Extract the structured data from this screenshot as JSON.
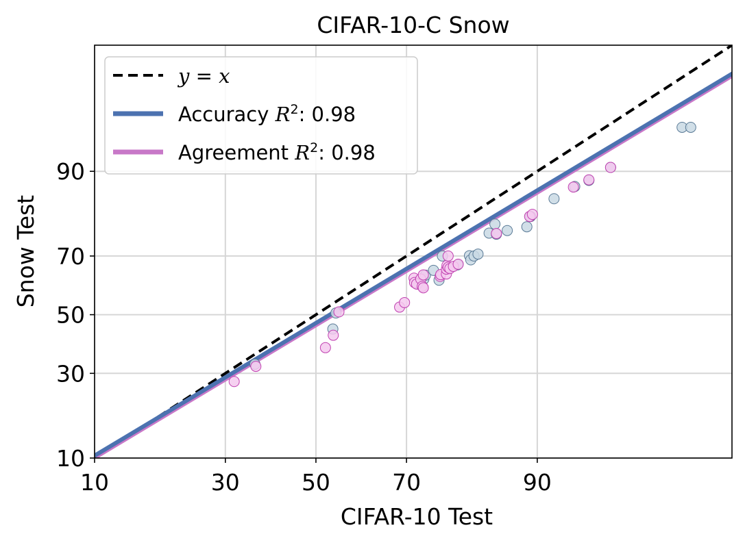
{
  "chart_data": {
    "type": "scatter",
    "title": "CIFAR-10-C Snow",
    "xlabel": "CIFAR-10 Test",
    "ylabel": "Snow Test",
    "scale": "probit",
    "xlim": [
      10,
      99.2
    ],
    "ylim": [
      10,
      99.2
    ],
    "xticks": [
      10,
      30,
      50,
      70,
      90
    ],
    "yticks": [
      10,
      30,
      50,
      70,
      90
    ],
    "grid": true,
    "legend_position": "top-left",
    "legend": [
      {
        "key": "yx",
        "label_parts": [
          {
            "t": "y",
            "math": true
          },
          {
            "t": " = ",
            "math": false
          },
          {
            "t": "x",
            "math": true
          }
        ],
        "style": "dashed",
        "color": "#000000"
      },
      {
        "key": "accuracy",
        "label_parts": [
          {
            "t": "Accuracy ",
            "math": false
          },
          {
            "t": "R",
            "math": true
          },
          {
            "t": "2",
            "sup": true
          },
          {
            "t": ": 0.98",
            "math": false
          }
        ],
        "color": "#4c72b0"
      },
      {
        "key": "agreement",
        "label_parts": [
          {
            "t": "Agreement ",
            "math": false
          },
          {
            "t": "R",
            "math": true
          },
          {
            "t": "2",
            "sup": true
          },
          {
            "t": ": 0.98",
            "math": false
          }
        ],
        "color": "#c878c8"
      }
    ],
    "series": [
      {
        "name": "Accuracy",
        "color": "#4c72b0",
        "point_fill": "#c9d9e4",
        "point_stroke": "#5a7a96",
        "fit": {
          "slope": 0.925,
          "intercept": -0.075
        },
        "points": [
          [
            36.2,
            32.9
          ],
          [
            53.9,
            44.9
          ],
          [
            54.6,
            50.6
          ],
          [
            72.2,
            60.8
          ],
          [
            73.4,
            62.5
          ],
          [
            73.7,
            63.8
          ],
          [
            75.2,
            65.4
          ],
          [
            76.2,
            62.1
          ],
          [
            76.8,
            70.0
          ],
          [
            79.4,
            67.2
          ],
          [
            81.3,
            70.1
          ],
          [
            81.5,
            68.8
          ],
          [
            82.0,
            70.0
          ],
          [
            82.6,
            70.6
          ],
          [
            84.2,
            76.7
          ],
          [
            85.0,
            79.1
          ],
          [
            85.2,
            76.4
          ],
          [
            86.6,
            77.4
          ],
          [
            88.9,
            78.4
          ],
          [
            89.3,
            81.0
          ],
          [
            91.6,
            85.0
          ],
          [
            93.3,
            87.4
          ],
          [
            94.3,
            88.5
          ],
          [
            95.6,
            90.6
          ],
          [
            98.3,
            95.3
          ],
          [
            98.5,
            95.3
          ]
        ]
      },
      {
        "name": "Agreement",
        "color": "#c878c8",
        "point_fill": "#f4c9ee",
        "point_stroke": "#c040b0",
        "fit": {
          "slope": 0.925,
          "intercept": -0.09
        },
        "points": [
          [
            31.8,
            27.5
          ],
          [
            36.4,
            32.2
          ],
          [
            52.2,
            38.4
          ],
          [
            54.0,
            42.7
          ],
          [
            55.3,
            51.0
          ],
          [
            68.6,
            52.7
          ],
          [
            69.6,
            54.3
          ],
          [
            71.5,
            62.8
          ],
          [
            71.6,
            61.3
          ],
          [
            72.0,
            60.8
          ],
          [
            72.8,
            62.5
          ],
          [
            73.1,
            60.0
          ],
          [
            73.3,
            63.9
          ],
          [
            73.3,
            59.5
          ],
          [
            76.4,
            63.4
          ],
          [
            76.5,
            64.0
          ],
          [
            77.5,
            64.2
          ],
          [
            77.5,
            65.8
          ],
          [
            77.6,
            67.0
          ],
          [
            77.8,
            66.4
          ],
          [
            77.8,
            70.0
          ],
          [
            78.1,
            66.0
          ],
          [
            78.7,
            66.7
          ],
          [
            79.5,
            67.4
          ],
          [
            85.2,
            76.6
          ],
          [
            89.2,
            81.0
          ],
          [
            89.5,
            81.5
          ],
          [
            93.2,
            87.3
          ],
          [
            94.3,
            88.6
          ],
          [
            95.6,
            90.6
          ]
        ]
      }
    ]
  }
}
